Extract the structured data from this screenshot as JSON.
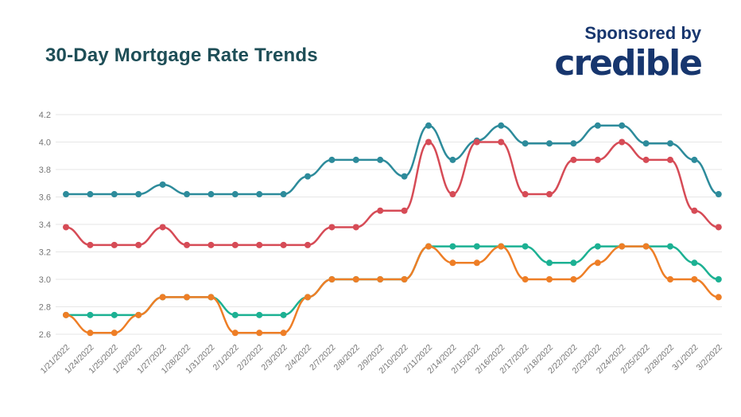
{
  "header": {
    "title": "30-Day Mortgage Rate Trends",
    "sponsored_by": "Sponsored by",
    "sponsor_name": "credible"
  },
  "colors": {
    "title_text": "#1e4e57",
    "sponsor_navy": "#17366e",
    "gridline": "#e6e6e6",
    "axis_label": "#757575",
    "background": "#ffffff"
  },
  "chart_data": {
    "type": "line",
    "title": "30-Day Mortgage Rate Trends",
    "xlabel": "",
    "ylabel": "",
    "ylim": [
      2.5,
      4.3
    ],
    "yticks": [
      4.2,
      4.0,
      3.8,
      3.6,
      3.4,
      3.2,
      3.0,
      2.8,
      2.6
    ],
    "grid": "horizontal",
    "legend": "none",
    "marker": "dot",
    "x": [
      "1/21/2022",
      "1/24/2022",
      "1/25/2022",
      "1/26/2022",
      "1/27/2022",
      "1/28/2022",
      "1/31/2022",
      "2/1/2022",
      "2/2/2022",
      "2/3/2022",
      "2/4/2022",
      "2/7/2022",
      "2/8/2022",
      "2/9/2022",
      "2/10/2022",
      "2/11/2022",
      "2/14/2022",
      "2/15/2022",
      "2/16/2022",
      "2/17/2022",
      "2/18/2022",
      "2/22/2022",
      "2/23/2022",
      "2/24/2022",
      "2/25/2022",
      "2/28/2022",
      "3/1/2022",
      "3/2/2022"
    ],
    "series": [
      {
        "name": "teal",
        "color": "#2d8b9b",
        "values": [
          3.62,
          3.62,
          3.62,
          3.62,
          3.69,
          3.62,
          3.62,
          3.62,
          3.62,
          3.62,
          3.75,
          3.87,
          3.87,
          3.87,
          3.75,
          4.12,
          3.87,
          4.01,
          4.12,
          3.99,
          3.99,
          3.99,
          4.12,
          4.12,
          3.99,
          3.99,
          3.87,
          3.62
        ]
      },
      {
        "name": "red",
        "color": "#d64b56",
        "values": [
          3.38,
          3.25,
          3.25,
          3.25,
          3.38,
          3.25,
          3.25,
          3.25,
          3.25,
          3.25,
          3.25,
          3.38,
          3.38,
          3.5,
          3.5,
          4.0,
          3.62,
          4.0,
          4.0,
          3.62,
          3.62,
          3.87,
          3.87,
          4.0,
          3.87,
          3.87,
          3.5,
          3.38
        ]
      },
      {
        "name": "green",
        "color": "#1cb193",
        "values": [
          2.74,
          2.74,
          2.74,
          2.74,
          2.87,
          2.87,
          2.87,
          2.74,
          2.74,
          2.74,
          2.87,
          3.0,
          3.0,
          3.0,
          3.0,
          3.24,
          3.24,
          3.24,
          3.24,
          3.24,
          3.12,
          3.12,
          3.24,
          3.24,
          3.24,
          3.24,
          3.12,
          3.0
        ]
      },
      {
        "name": "orange",
        "color": "#ee7e26",
        "values": [
          2.74,
          2.61,
          2.61,
          2.74,
          2.87,
          2.87,
          2.87,
          2.61,
          2.61,
          2.61,
          2.87,
          3.0,
          3.0,
          3.0,
          3.0,
          3.24,
          3.12,
          3.12,
          3.24,
          3.0,
          3.0,
          3.0,
          3.12,
          3.24,
          3.24,
          3.0,
          3.0,
          2.87
        ]
      }
    ]
  }
}
